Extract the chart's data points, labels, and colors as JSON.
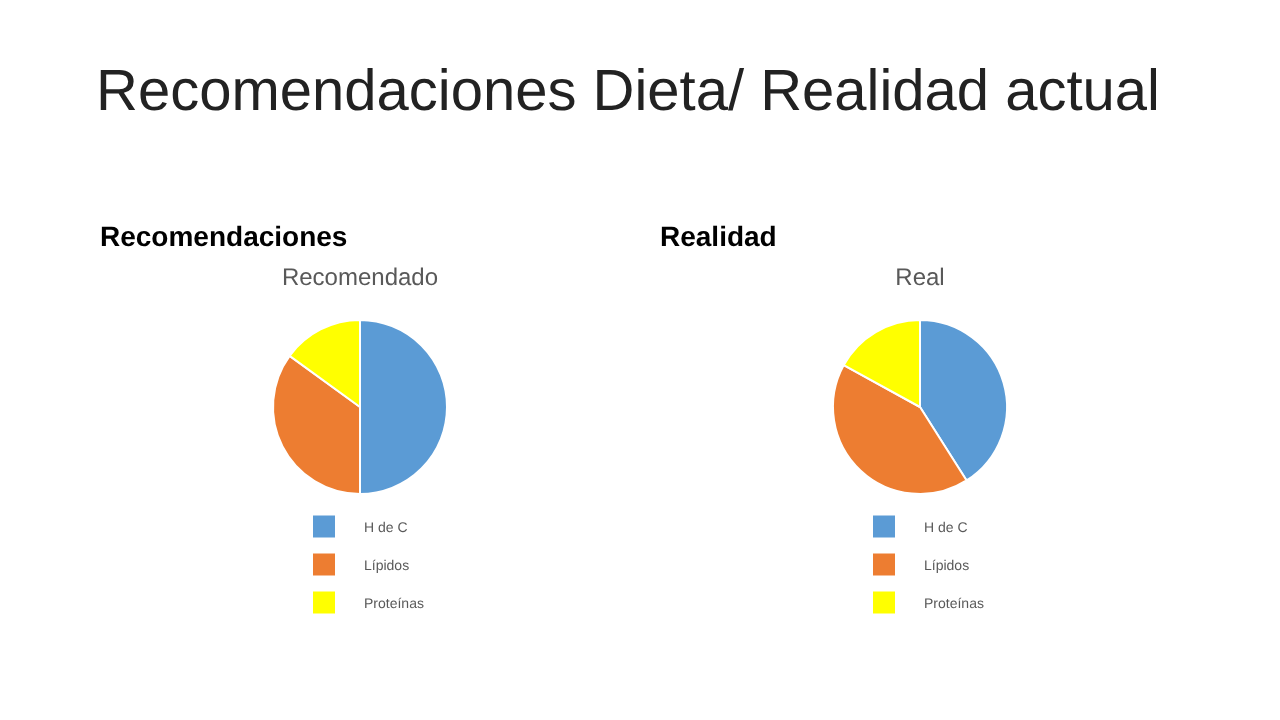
{
  "chart_data": [
    {
      "type": "pie",
      "title": "Recomendado",
      "annotations": [
        "Recomendaciones Dieta/ Realidad actual",
        "Recomendaciones"
      ],
      "categories": [
        "H de C",
        "Lípidos",
        "Proteínas"
      ],
      "values": [
        50,
        35,
        15
      ],
      "colors": [
        "#5b9bd5",
        "#ed7d31",
        "#ffff00"
      ],
      "legend": "bottom"
    },
    {
      "type": "pie",
      "title": "Real",
      "annotations": [
        "Realidad"
      ],
      "categories": [
        "H de C",
        "Lípidos",
        "Proteínas"
      ],
      "values": [
        41,
        42,
        17
      ],
      "colors": [
        "#5b9bd5",
        "#ed7d31",
        "#ffff00"
      ],
      "legend": "bottom"
    }
  ]
}
